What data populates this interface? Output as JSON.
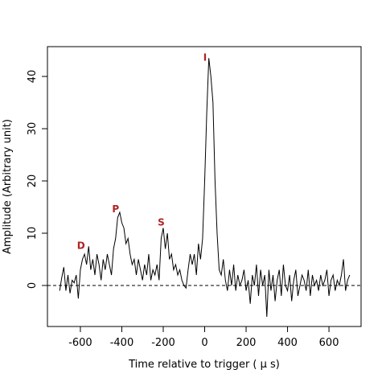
{
  "chart_data": {
    "type": "line",
    "xlabel": "Time relative to trigger ( μ s)",
    "ylabel": "Amplitude (Arbitrary unit)",
    "xlim": [
      -759,
      755
    ],
    "ylim": [
      -7.85,
      45.7
    ],
    "xticks": [
      -600,
      -400,
      -200,
      0,
      200,
      400,
      600
    ],
    "yticks": [
      0,
      10,
      20,
      30,
      40
    ],
    "hline": 0,
    "annotation_color": "#b22222",
    "annotations": [
      {
        "text": "D",
        "x": -597,
        "y": 7
      },
      {
        "text": "P",
        "x": -430,
        "y": 14
      },
      {
        "text": "S",
        "x": -210,
        "y": 11.5
      },
      {
        "text": "I",
        "x": 2,
        "y": 43
      }
    ],
    "series": [
      {
        "name": "amplitude",
        "color": "#000000",
        "x": [
          -700,
          -690,
          -680,
          -670,
          -660,
          -650,
          -640,
          -630,
          -620,
          -610,
          -600,
          -590,
          -580,
          -570,
          -560,
          -550,
          -540,
          -530,
          -520,
          -510,
          -500,
          -490,
          -480,
          -470,
          -460,
          -450,
          -440,
          -430,
          -420,
          -410,
          -400,
          -390,
          -380,
          -370,
          -360,
          -350,
          -340,
          -330,
          -320,
          -310,
          -300,
          -290,
          -280,
          -270,
          -260,
          -250,
          -240,
          -230,
          -220,
          -210,
          -200,
          -190,
          -180,
          -170,
          -160,
          -150,
          -140,
          -130,
          -120,
          -110,
          -100,
          -90,
          -80,
          -70,
          -60,
          -50,
          -40,
          -30,
          -20,
          -10,
          0,
          10,
          20,
          30,
          40,
          50,
          60,
          70,
          80,
          90,
          100,
          110,
          120,
          130,
          140,
          150,
          160,
          170,
          180,
          190,
          200,
          210,
          220,
          230,
          240,
          250,
          260,
          270,
          280,
          290,
          300,
          310,
          320,
          330,
          340,
          350,
          360,
          370,
          380,
          390,
          400,
          410,
          420,
          430,
          440,
          450,
          460,
          470,
          480,
          490,
          500,
          510,
          520,
          530,
          540,
          550,
          560,
          570,
          580,
          590,
          600,
          610,
          620,
          630,
          640,
          650,
          660,
          670,
          680,
          690,
          700
        ],
        "values": [
          -1,
          1.5,
          3.5,
          -1,
          2,
          -1.5,
          1,
          0.5,
          2,
          -2.5,
          3,
          5,
          6,
          4,
          7.5,
          3,
          5,
          2,
          6,
          4,
          1,
          5,
          3,
          6,
          4,
          2,
          7,
          9,
          13,
          14,
          12,
          11,
          8,
          9,
          6,
          4,
          5,
          2,
          5,
          3,
          1,
          4,
          2,
          6,
          1,
          3,
          2,
          4,
          1,
          9,
          11,
          7,
          10,
          5,
          6,
          3,
          4,
          2,
          3,
          1,
          0,
          -0.5,
          3,
          6,
          4,
          6,
          2,
          8,
          5,
          9,
          20,
          33,
          43.5,
          40,
          35,
          20,
          10,
          3,
          2,
          5,
          1,
          -1,
          3,
          0,
          4,
          -1,
          2,
          0,
          1,
          3,
          -1,
          1,
          -3.5,
          2,
          0,
          4,
          -2,
          3,
          0,
          2,
          -6,
          3,
          -1,
          2,
          -3,
          1,
          3,
          -2,
          4,
          0,
          -1,
          2,
          -3,
          1,
          3,
          -2,
          0,
          2,
          1,
          -1,
          3,
          -2,
          2,
          0,
          1,
          -1,
          2,
          0,
          1,
          3,
          -2,
          1,
          2,
          -1,
          1,
          0,
          2,
          5,
          -1,
          1,
          2
        ]
      }
    ]
  }
}
